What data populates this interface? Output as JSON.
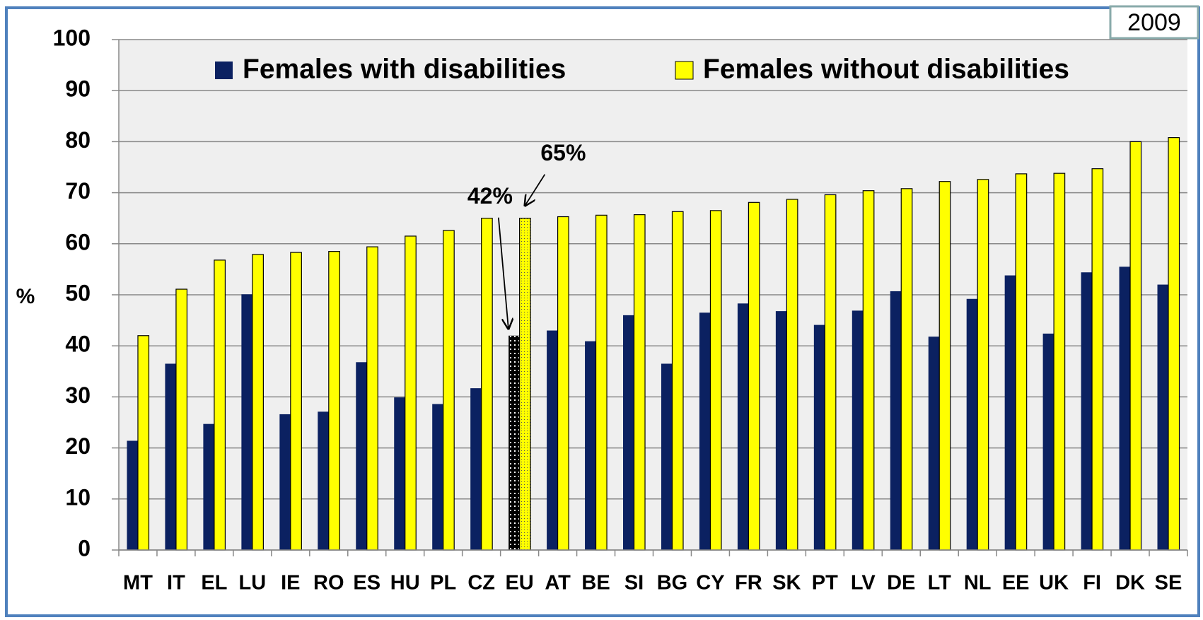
{
  "chart_data": {
    "type": "bar",
    "tag": "2009",
    "ylabel": "%",
    "categories": [
      "MT",
      "IT",
      "EL",
      "LU",
      "IE",
      "RO",
      "ES",
      "HU",
      "PL",
      "CZ",
      "EU",
      "AT",
      "BE",
      "SI",
      "BG",
      "CY",
      "FR",
      "SK",
      "PT",
      "LV",
      "DE",
      "LT",
      "NL",
      "EE",
      "UK",
      "FI",
      "DK",
      "SE"
    ],
    "series": [
      {
        "name": "Females with disabilities",
        "color": "#0b2161",
        "values": [
          21.4,
          36.5,
          24.7,
          50.1,
          26.6,
          27.1,
          36.8,
          29.9,
          28.6,
          31.7,
          42,
          43,
          40.9,
          46,
          36.5,
          46.5,
          48.3,
          46.8,
          44.1,
          46.9,
          50.7,
          41.8,
          49.2,
          53.8,
          42.4,
          54.4,
          55.5,
          52
        ]
      },
      {
        "name": "Females without disabilities",
        "color": "#ffff00",
        "values": [
          42,
          51.1,
          56.8,
          57.9,
          58.3,
          58.5,
          59.4,
          61.5,
          62.6,
          65,
          65,
          65.3,
          65.6,
          65.7,
          66.3,
          66.5,
          68.1,
          68.7,
          69.6,
          70.4,
          70.8,
          72.2,
          72.6,
          73.7,
          73.8,
          74.7,
          80,
          80.8
        ]
      }
    ],
    "annotations": [
      {
        "text": "42%",
        "category": "EU",
        "series": 0
      },
      {
        "text": "65%",
        "category": "EU",
        "series": 1
      }
    ],
    "highlight_category": "EU",
    "ylim": [
      0,
      100
    ],
    "yticks": [
      0,
      10,
      20,
      30,
      40,
      50,
      60,
      70,
      80,
      90,
      100
    ],
    "grid": true,
    "legend": "top"
  }
}
